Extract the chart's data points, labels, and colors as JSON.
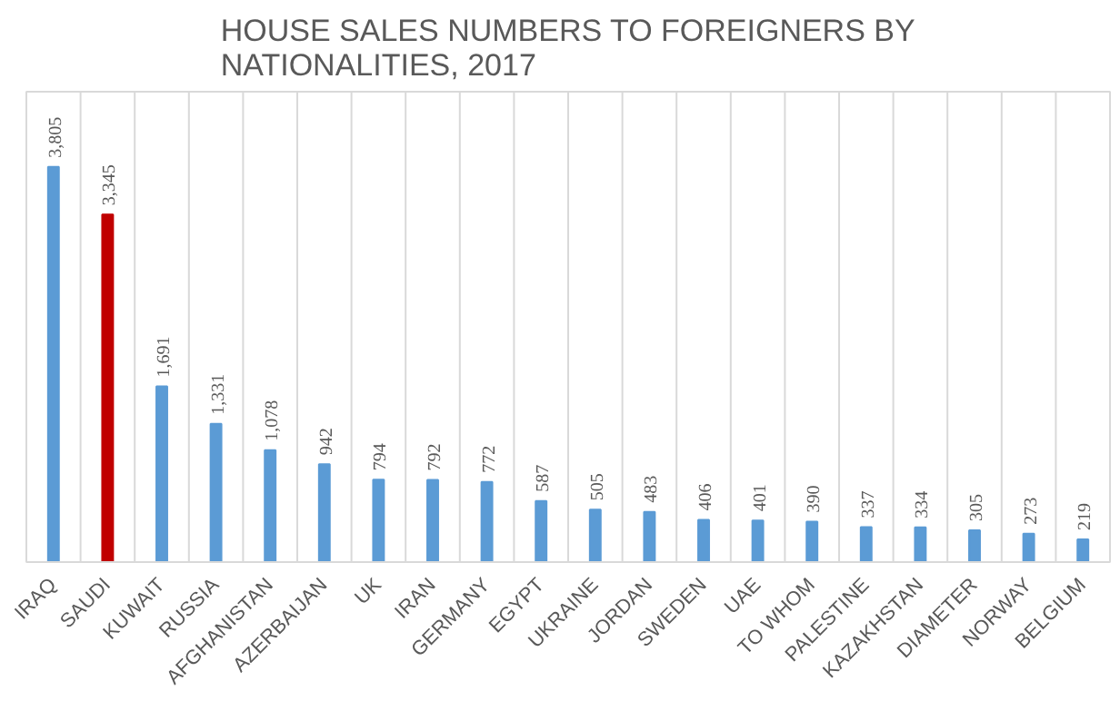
{
  "chart_data": {
    "type": "bar",
    "title": "HOUSE SALES NUMBERS TO FOREIGNERS BY NATIONALITIES, 2017",
    "categories": [
      "IRAQ",
      "SAUDI",
      "KUWAIT",
      "RUSSIA",
      "AFGHANISTAN",
      "AZERBAIJAN",
      "UK",
      "IRAN",
      "GERMANY",
      "EGYPT",
      "UKRAINE",
      "JORDAN",
      "SWEDEN",
      "UAE",
      "TO WHOM",
      "PALESTINE",
      "KAZAKHSTAN",
      "DIAMETER",
      "NORWAY",
      "BELGIUM"
    ],
    "values": [
      3805,
      3345,
      1691,
      1331,
      1078,
      942,
      794,
      792,
      772,
      587,
      505,
      483,
      406,
      401,
      390,
      337,
      334,
      305,
      273,
      219
    ],
    "colors": [
      "#5b9bd5",
      "#c00000",
      "#5b9bd5",
      "#5b9bd5",
      "#5b9bd5",
      "#5b9bd5",
      "#5b9bd5",
      "#5b9bd5",
      "#5b9bd5",
      "#5b9bd5",
      "#5b9bd5",
      "#5b9bd5",
      "#5b9bd5",
      "#5b9bd5",
      "#5b9bd5",
      "#5b9bd5",
      "#5b9bd5",
      "#5b9bd5",
      "#5b9bd5",
      "#5b9bd5"
    ],
    "value_labels": [
      "3,805",
      "3,345",
      "1,691",
      "1,331",
      "1,078",
      "942",
      "794",
      "792",
      "772",
      "587",
      "505",
      "483",
      "406",
      "401",
      "390",
      "337",
      "334",
      "305",
      "273",
      "219"
    ],
    "grid": "x"
  }
}
